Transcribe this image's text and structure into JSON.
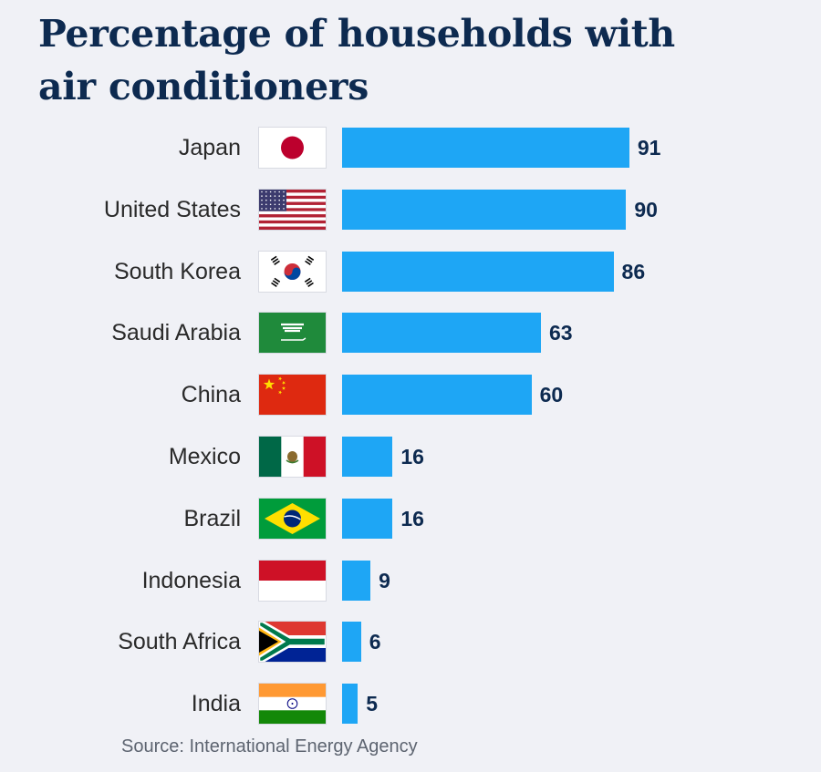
{
  "chart_data": {
    "type": "bar",
    "orientation": "horizontal",
    "title_lines": [
      "Percentage of households with",
      "air conditioners"
    ],
    "categories": [
      "Japan",
      "United States",
      "South Korea",
      "Saudi Arabia",
      "China",
      "Mexico",
      "Brazil",
      "Indonesia",
      "South Africa",
      "India"
    ],
    "values": [
      91,
      90,
      86,
      63,
      60,
      16,
      16,
      9,
      6,
      5
    ],
    "flags": [
      "japan-flag-icon",
      "usa-flag-icon",
      "south-korea-flag-icon",
      "saudi-arabia-flag-icon",
      "china-flag-icon",
      "mexico-flag-icon",
      "brazil-flag-icon",
      "indonesia-flag-icon",
      "south-africa-flag-icon",
      "india-flag-icon"
    ],
    "xlim": [
      0,
      100
    ],
    "xlabel": "",
    "ylabel": "",
    "grid": false,
    "legend": "none",
    "bar_color": "#1ea6f5",
    "source": "Source: International Energy Agency"
  },
  "colors": {
    "background": "#f0f1f6",
    "title": "#0d2a50",
    "label": "#2a2a2a",
    "value": "#0d2a50",
    "source": "#5d6470"
  }
}
